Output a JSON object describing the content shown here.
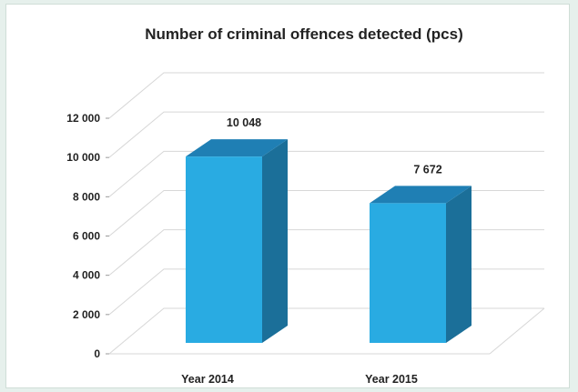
{
  "chart_data": {
    "type": "bar",
    "title": "Number of criminal offences detected (pcs)",
    "categories": [
      "Year 2014",
      "Year 2015"
    ],
    "values": [
      10048,
      7672
    ],
    "data_labels": [
      "10 048",
      "7 672"
    ],
    "ylim": [
      0,
      12000
    ],
    "yticks": [
      0,
      2000,
      4000,
      6000,
      8000,
      10000,
      12000
    ],
    "ytick_labels": [
      "0",
      "2 000",
      "4 000",
      "6 000",
      "8 000",
      "10 000",
      "12 000"
    ],
    "grid": true,
    "legend": false,
    "three_d": true
  },
  "colors": {
    "bar_front": "#29abe2",
    "bar_top": "#1f7fb4",
    "bar_side": "#1b6f99",
    "grid": "#d7d7d7",
    "background": "#e6f0ec"
  }
}
